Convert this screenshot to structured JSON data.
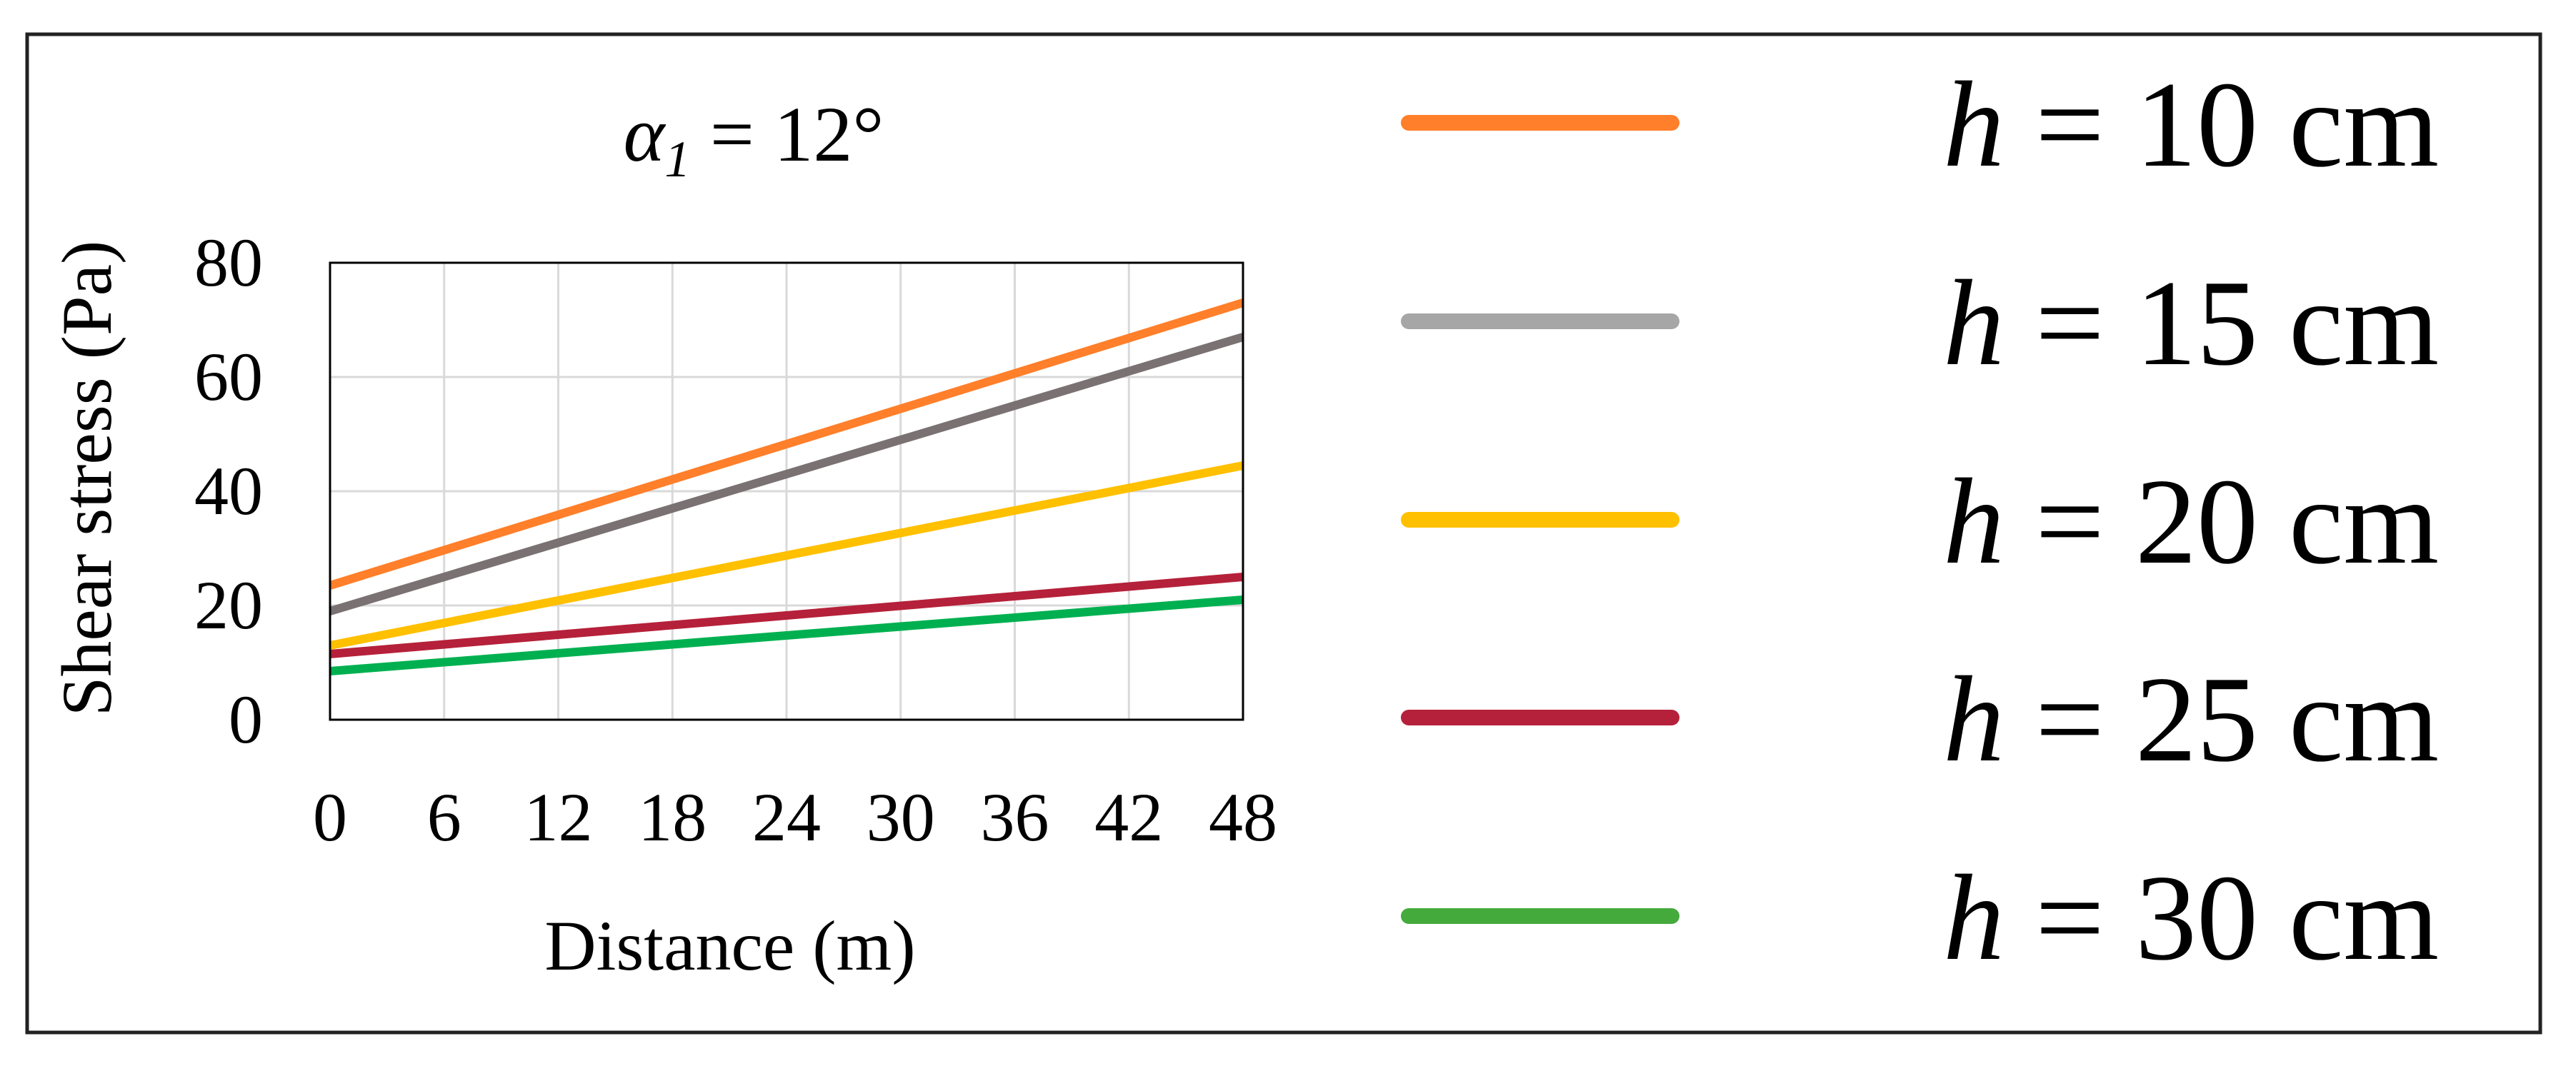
{
  "chart_data": {
    "type": "line",
    "title": "α1 = 12°",
    "xlabel": "Distance (m)",
    "ylabel": "Shear stress (Pa)",
    "xlim": [
      0,
      48
    ],
    "ylim": [
      0,
      80
    ],
    "x_ticks": [
      "0",
      "6",
      "12",
      "18",
      "24",
      "30",
      "36",
      "42",
      "48"
    ],
    "y_ticks": [
      "0",
      "20",
      "40",
      "60",
      "80"
    ],
    "grid": true,
    "legend_position": "right",
    "series": [
      {
        "name": "h = 10 cm",
        "color": "#ff7f2a",
        "x": [
          0,
          48
        ],
        "y": [
          23.5,
          73
        ]
      },
      {
        "name": "h = 15 cm",
        "color": "#7a7173",
        "legend_color": "#a6a6a6",
        "x": [
          0,
          48
        ],
        "y": [
          19,
          67
        ]
      },
      {
        "name": "h = 20 cm",
        "color": "#ffc000",
        "x": [
          0,
          48
        ],
        "y": [
          13,
          44.5
        ]
      },
      {
        "name": "h = 25 cm",
        "color": "#b5213a",
        "x": [
          0,
          48
        ],
        "y": [
          11.5,
          25
        ]
      },
      {
        "name": "h = 30 cm",
        "color": "#00b050",
        "legend_color": "#44aa3c",
        "x": [
          0,
          48
        ],
        "y": [
          8.5,
          21
        ]
      }
    ]
  }
}
